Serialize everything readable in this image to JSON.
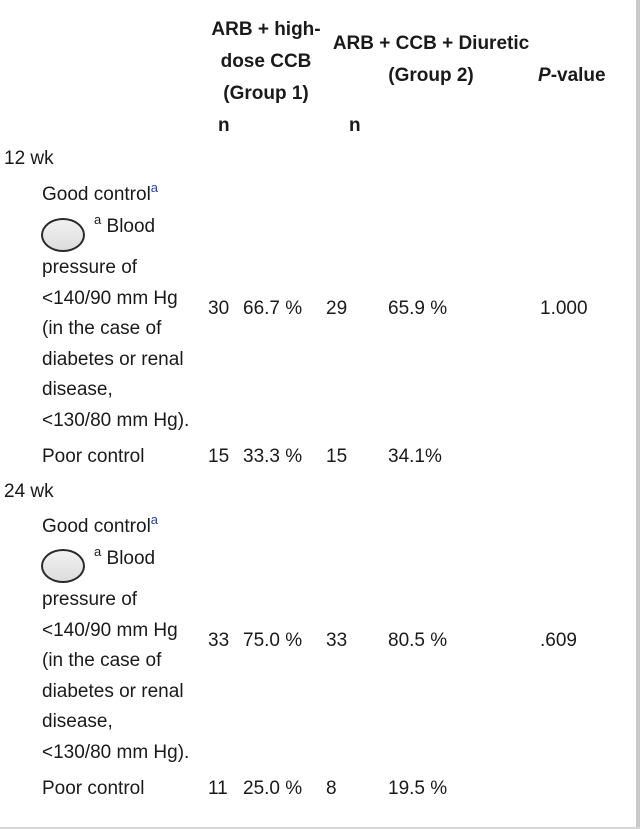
{
  "header": {
    "group1_line1": "ARB + high-",
    "group1_line2": "dose CCB",
    "group1_line3": "(Group 1)",
    "group2_line1": "ARB + CCB + Diuretic",
    "group2_line2": "(Group 2)",
    "pvalue_italic": "P",
    "pvalue_rest": "-value",
    "n_label_1": "n",
    "n_label_2": "n"
  },
  "sections": [
    {
      "label": "12 wk",
      "good": {
        "label": "Good control",
        "sup": "a",
        "note_sup": "a",
        "note_first": "Blood",
        "note_lines": [
          "pressure of",
          "<140/90 mm Hg",
          "(in the case of",
          "diabetes or renal",
          "disease,",
          "<130/80 mm Hg)."
        ],
        "n1": "30",
        "pct1": "66.7 %",
        "n2": "29",
        "pct2": "65.9 %",
        "p": "1.000"
      },
      "poor": {
        "label": "Poor control",
        "n1": "15",
        "pct1": "33.3 %",
        "n2": "15",
        "pct2": "34.1%"
      }
    },
    {
      "label": "24 wk",
      "good": {
        "label": "Good control",
        "sup": "a",
        "note_sup": "a",
        "note_first": "Blood",
        "note_lines": [
          "pressure of",
          "<140/90 mm Hg",
          "(in the case of",
          "diabetes or renal",
          "disease,",
          "<130/80 mm Hg)."
        ],
        "n1": "33",
        "pct1": "75.0 %",
        "n2": "33",
        "pct2": "80.5 %",
        "p": ".609"
      },
      "poor": {
        "label": "Poor control",
        "n1": "11",
        "pct1": "25.0 %",
        "n2": "8",
        "pct2": "19.5 %"
      }
    }
  ]
}
